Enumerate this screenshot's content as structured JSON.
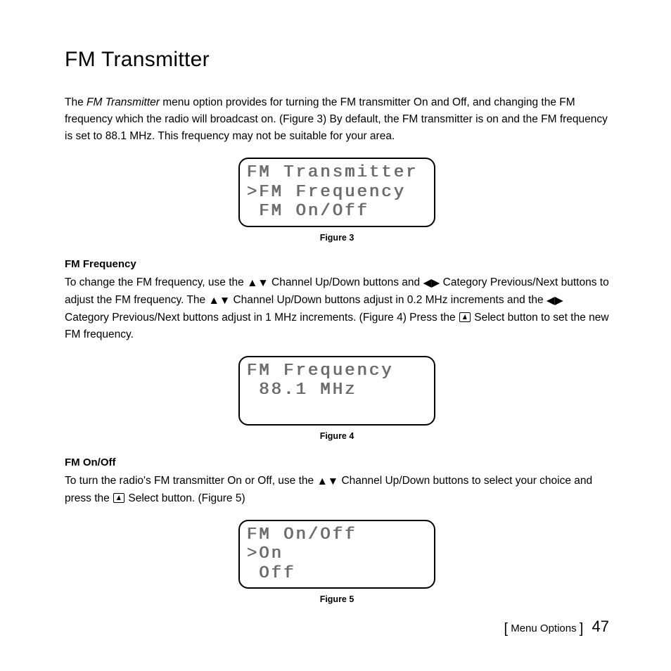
{
  "page": {
    "title": "FM Transmitter",
    "intro_pre": "The ",
    "intro_ital": "FM Transmitter",
    "intro_post": " menu option provides for turning the FM transmitter On and Off, and changing the FM frequency which the radio will broadcast on. (Figure 3) By default, the FM transmitter is on and the FM frequency is set to 88.1 MHz. This frequency may not be suitable for your area."
  },
  "figure3": {
    "lines": [
      "FM Transmitter",
      ">FM Frequency",
      " FM On/Off"
    ],
    "caption": "Figure 3"
  },
  "fm_frequency": {
    "heading": "FM Frequency",
    "p1_a": "To change the FM frequency, use the ",
    "p1_b": " Channel Up/Down buttons and  ",
    "p1_c": " Category Previous/Next buttons to adjust the FM frequency. The ",
    "p1_d": " Channel Up/Down buttons adjust in 0.2 MHz increments and the ",
    "p1_e": " Category Previous/Next buttons adjust in 1 MHz increments. (Figure 4) Press the ",
    "p1_f": " Select button to set the new FM frequency."
  },
  "figure4": {
    "lines": [
      "FM Frequency",
      " 88.1 MHz",
      " "
    ],
    "caption": "Figure 4"
  },
  "fm_onoff": {
    "heading": "FM On/Off",
    "p1_a": "To turn the radio's FM transmitter On or Off, use the ",
    "p1_b": " Channel Up/Down buttons to select your choice and press the ",
    "p1_c": " Select button. (Figure 5)"
  },
  "figure5": {
    "lines": [
      "FM On/Off",
      ">On",
      " Off"
    ],
    "caption": "Figure 5"
  },
  "footer": {
    "section": "Menu Options",
    "page_number": "47"
  },
  "colors": {
    "text": "#000000",
    "lcd_text": "#6a6a6a",
    "background": "#ffffff"
  }
}
